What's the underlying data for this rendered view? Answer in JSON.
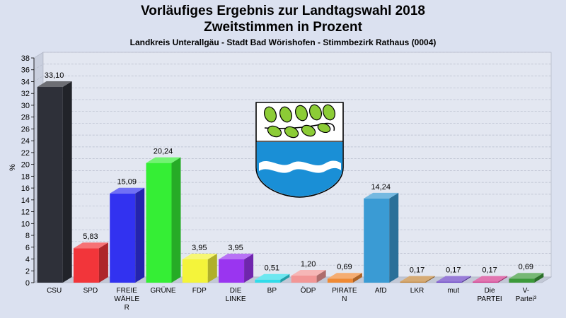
{
  "chart_data": {
    "type": "bar",
    "title_line1": "Vorläufiges Ergebnis zur Landtagswahl 2018",
    "title_line2": "Zweitstimmen in Prozent",
    "subtitle": "Landkreis Unterallgäu - Stadt Bad Wörishofen - Stimmbezirk Rathaus (0004)",
    "ylabel": "%",
    "xlabel": "",
    "ylim": [
      0,
      38
    ],
    "ytick_step": 2,
    "grid": true,
    "categories": [
      "CSU",
      "SPD",
      "FREIE WÄHLER",
      "GRÜNE",
      "FDP",
      "DIE LINKE",
      "BP",
      "ÖDP",
      "PIRATEN",
      "AfD",
      "LKR",
      "mut",
      "Die PARTEI",
      "V-Partei³"
    ],
    "category_labels": [
      [
        "CSU"
      ],
      [
        "SPD"
      ],
      [
        "FREIE",
        "WÄHLE",
        "R"
      ],
      [
        "GRÜNE"
      ],
      [
        "FDP"
      ],
      [
        "DIE",
        "LINKE"
      ],
      [
        "BP"
      ],
      [
        "ÖDP"
      ],
      [
        "PIRATE",
        "N"
      ],
      [
        "AfD"
      ],
      [
        "LKR"
      ],
      [
        "mut"
      ],
      [
        "Die",
        "PARTEI"
      ],
      [
        "V-",
        "Partei³"
      ]
    ],
    "values": [
      33.1,
      5.83,
      15.09,
      20.24,
      3.95,
      3.95,
      0.51,
      1.2,
      0.69,
      14.24,
      0.17,
      0.17,
      0.17,
      0.69
    ],
    "value_labels": [
      "33,10",
      "5,83",
      "15,09",
      "20,24",
      "3,95",
      "3,95",
      "0,51",
      "1,20",
      "0,69",
      "14,24",
      "0,17",
      "0,17",
      "0,17",
      "0,69"
    ],
    "colors": [
      "#2e3039",
      "#f2353a",
      "#3232f0",
      "#35ee35",
      "#f4f43a",
      "#9a35f0",
      "#30dcea",
      "#f29696",
      "#f08a35",
      "#3a9bd4",
      "#c4873a",
      "#6c44c6",
      "#d43a8e",
      "#3c9a3a"
    ]
  }
}
